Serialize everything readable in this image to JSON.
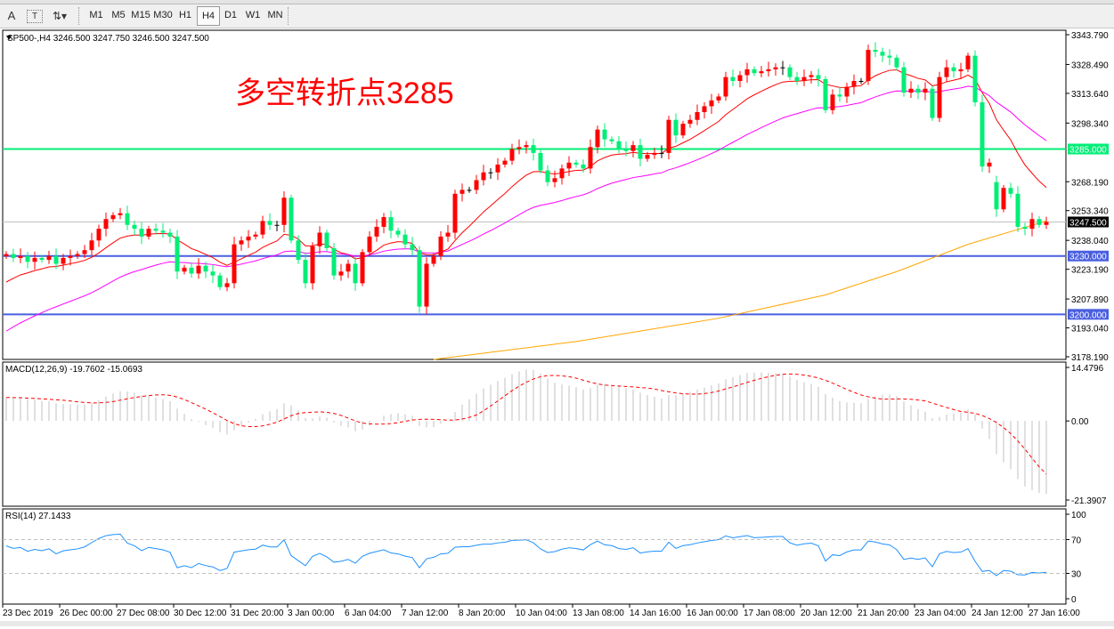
{
  "toolbar": {
    "tools": [
      "A",
      "T"
    ],
    "timeframes": [
      "M1",
      "M5",
      "M15",
      "M30",
      "H1",
      "H4",
      "D1",
      "W1",
      "MN"
    ],
    "active_timeframe": "H4"
  },
  "main_panel": {
    "header": "SP500-,H4  3246.500 3247.750 3246.500 3247.500",
    "annotation": "多空转折点3285",
    "annotation_color": "#ff0000",
    "price_ticks": [
      "3343.790",
      "3328.490",
      "3313.640",
      "3298.340",
      "3268.190",
      "3253.340",
      "3238.040",
      "3223.190",
      "3207.890",
      "3193.040",
      "3178.190"
    ],
    "current_price_label": "3247.500",
    "levels": [
      {
        "label": "3285.000",
        "value": 3285,
        "color": "#00ee76"
      },
      {
        "label": "3230.000",
        "value": 3230,
        "color": "#4a5fe0"
      },
      {
        "label": "3200.000",
        "value": 3200,
        "color": "#4a5fe0"
      }
    ]
  },
  "macd_panel": {
    "header": "MACD(12,26,9) -19.7602 -15.0693",
    "ticks": [
      "14.4796",
      "0.00",
      "-21.3907"
    ]
  },
  "rsi_panel": {
    "header": "RSI(14) 27.1433",
    "ticks": [
      "100",
      "70",
      "30",
      "0"
    ]
  },
  "time_axis": [
    "23 Dec 2019",
    "26 Dec 00:00",
    "27 Dec 08:00",
    "30 Dec 12:00",
    "31 Dec 20:00",
    "3 Jan 00:00",
    "6 Jan 04:00",
    "7 Jan 12:00",
    "8 Jan 20:00",
    "10 Jan 04:00",
    "13 Jan 08:00",
    "14 Jan 16:00",
    "16 Jan 00:00",
    "17 Jan 08:00",
    "20 Jan 12:00",
    "21 Jan 20:00",
    "23 Jan 04:00",
    "24 Jan 12:00",
    "27 Jan 16:00"
  ],
  "chart_data": {
    "type": "candlestick",
    "symbol": "SP500-",
    "timeframe": "H4",
    "ylim": [
      3178.19,
      3343.79
    ],
    "up_color": "#ff0000",
    "down_color": "#00ee76",
    "first_open": 3230,
    "gap": {
      "index": 139,
      "open": 3268
    },
    "close": [
      3231,
      3229,
      3230,
      3227,
      3229,
      3228,
      3230,
      3226,
      3229,
      3230,
      3231,
      3233,
      3238,
      3244,
      3249,
      3251,
      3252,
      3246,
      3244,
      3240,
      3244,
      3243,
      3242,
      3240,
      3222,
      3224,
      3221,
      3225,
      3222,
      3220,
      3214,
      3216,
      3236,
      3238,
      3240,
      3241,
      3248,
      3246,
      3246,
      3260,
      3238,
      3228,
      3216,
      3235,
      3242,
      3234,
      3220,
      3222,
      3226,
      3216,
      3232,
      3240,
      3245,
      3250,
      3243,
      3241,
      3236,
      3233,
      3204,
      3226,
      3230,
      3240,
      3242,
      3262,
      3264,
      3264,
      3269,
      3273,
      3273,
      3277,
      3279,
      3285,
      3286,
      3287,
      3283,
      3274,
      3268,
      3270,
      3275,
      3278,
      3277,
      3275,
      3286,
      3295,
      3290,
      3289,
      3285,
      3284,
      3287,
      3280,
      3282,
      3283,
      3283,
      3300,
      3292,
      3298,
      3300,
      3304,
      3307,
      3310,
      3312,
      3322,
      3320,
      3323,
      3326,
      3324,
      3325,
      3326,
      3327,
      3327,
      3322,
      3320,
      3322,
      3323,
      3321,
      3305,
      3313,
      3312,
      3317,
      3320,
      3320,
      3336,
      3335,
      3333,
      3332,
      3327,
      3314,
      3316,
      3314,
      3316,
      3301,
      3322,
      3327,
      3325,
      3326,
      3333,
      3309,
      3276,
      3278,
      3254,
      3265,
      3262,
      3245,
      3244,
      3249,
      3246,
      3247.5
    ],
    "moving_averages": [
      {
        "color": "#ff0000",
        "start": 3214
      },
      {
        "color": "#ff00ff",
        "start": 3189
      },
      {
        "color": "#ffa500",
        "points": [
          [
            60,
            3176
          ],
          [
            80,
            3186
          ],
          [
            100,
            3198
          ],
          [
            115,
            3210
          ],
          [
            125,
            3222
          ],
          [
            135,
            3236
          ],
          [
            146,
            3248
          ]
        ]
      }
    ],
    "macd": {
      "ylim": [
        -21.3907,
        14.4796
      ],
      "histogram_color": "#c0c0c0",
      "signal_color": "#ff0000",
      "last_main": -19.7602,
      "last_signal": -15.0693
    },
    "rsi": {
      "ylim": [
        0,
        100
      ],
      "levels": [
        70,
        30
      ],
      "color": "#1e90ff",
      "last": 27.1433
    }
  }
}
